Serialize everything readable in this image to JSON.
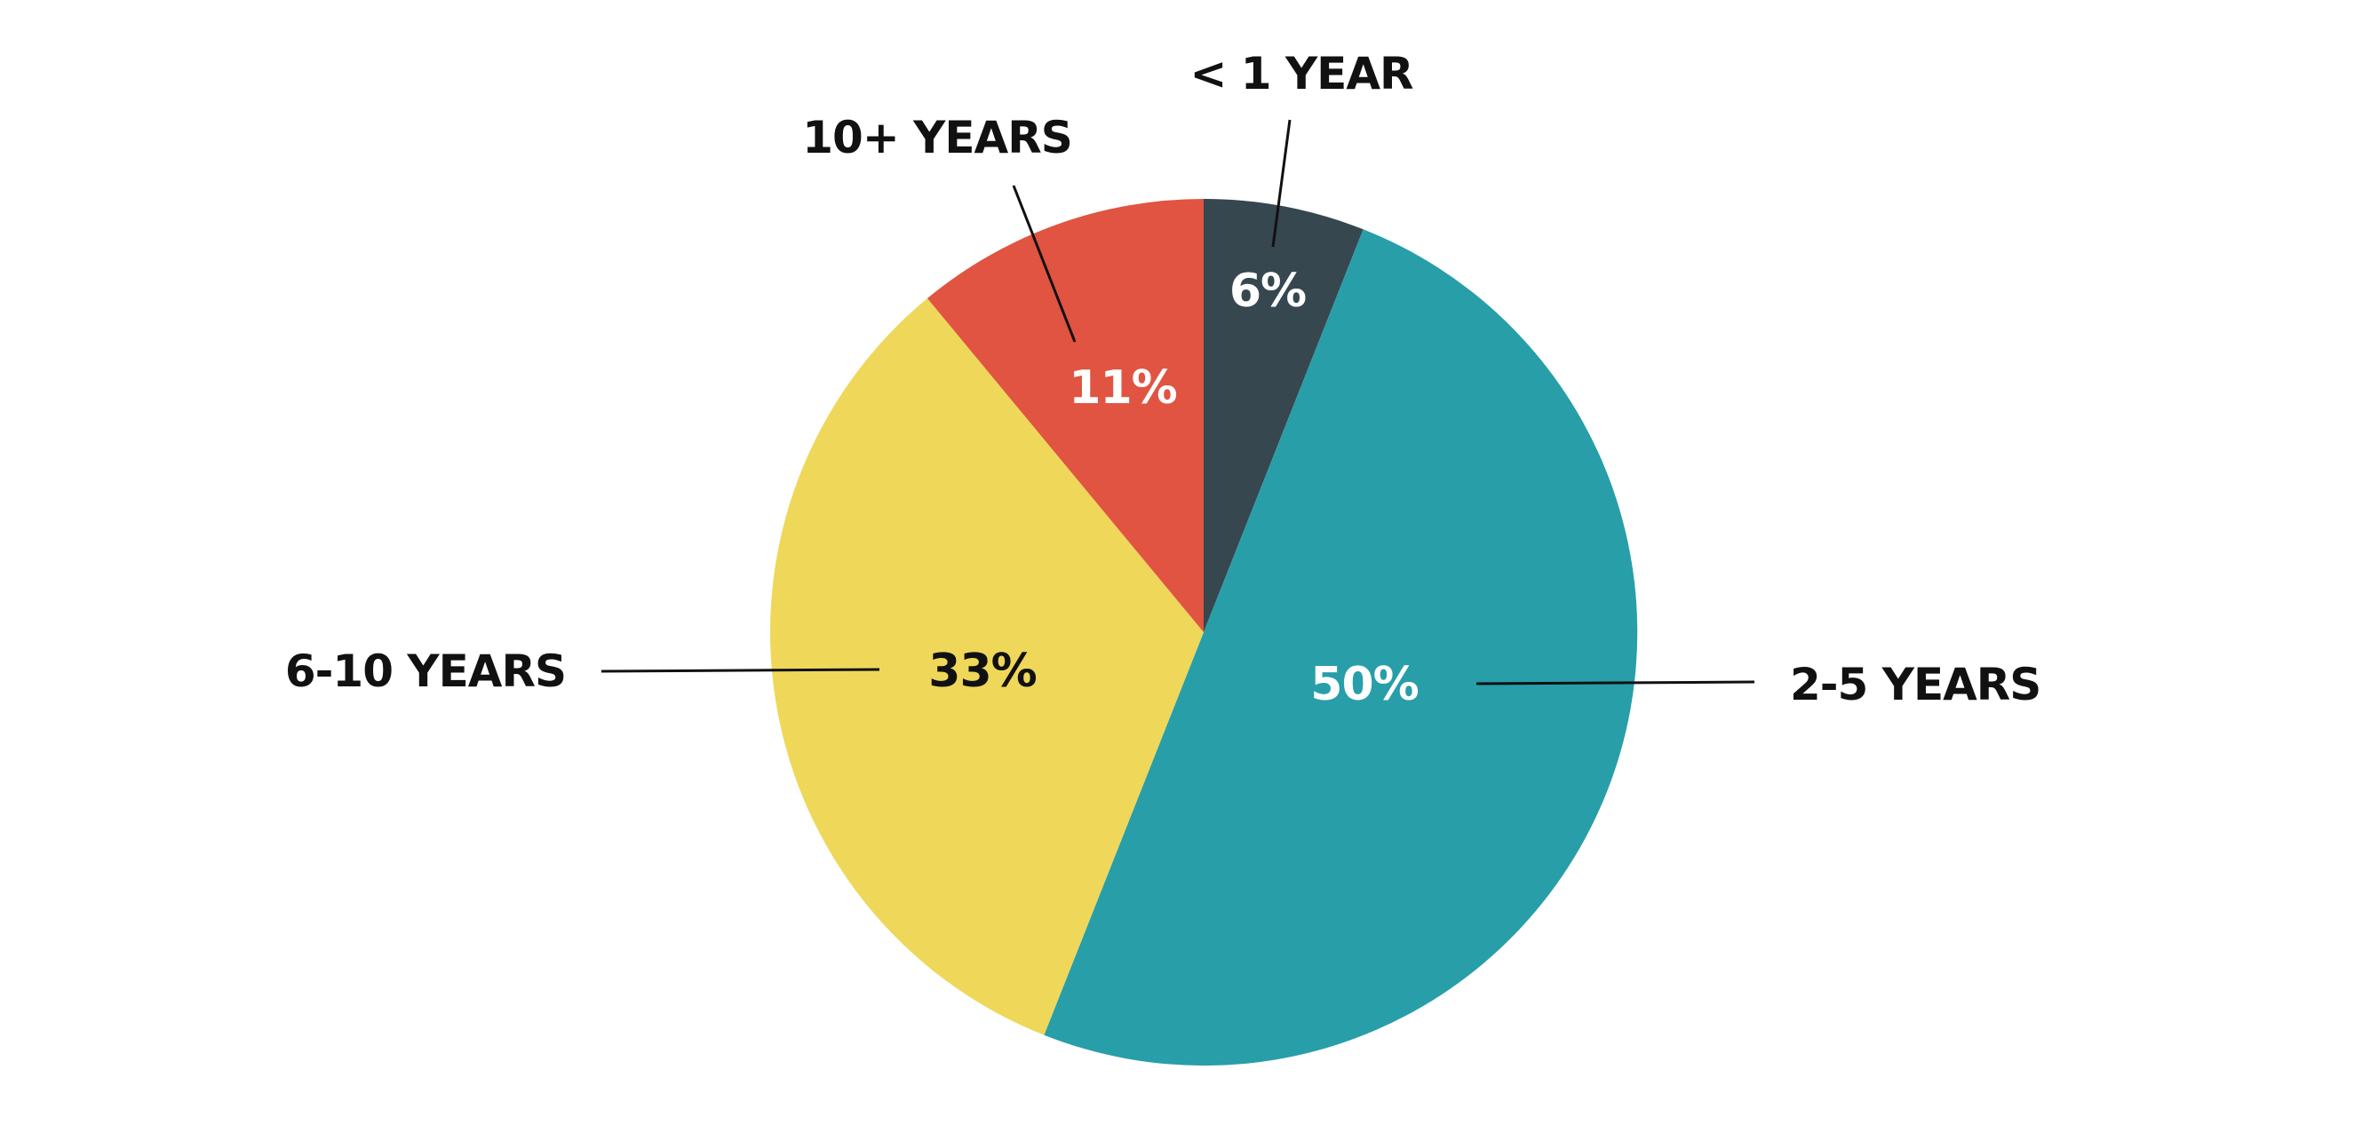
{
  "chart_data": {
    "type": "pie",
    "title": "",
    "categories": [
      "< 1 YEAR",
      "2-5 YEARS",
      "6-10 YEARS",
      "10+ YEARS"
    ],
    "values": [
      6,
      50,
      33,
      11
    ],
    "value_labels": [
      "6%",
      "50%",
      "33%",
      "11%"
    ],
    "colors": [
      "#36474F",
      "#289EA9",
      "#EFD75A",
      "#E05441"
    ],
    "value_label_colors": [
      "#FFFFFF",
      "#FFFFFF",
      "#111111",
      "#FFFFFF"
    ],
    "start_angle": "12 o'clock",
    "direction": "clockwise",
    "legend": "none"
  }
}
